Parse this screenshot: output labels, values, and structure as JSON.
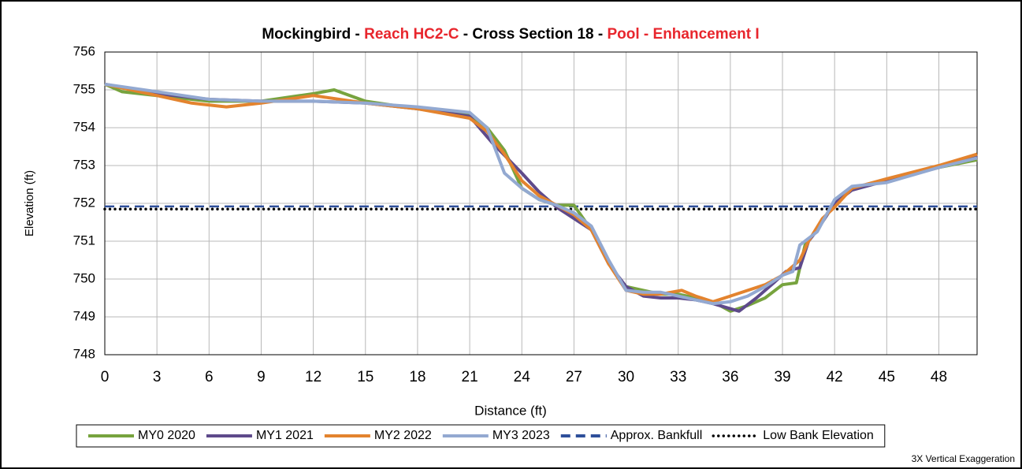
{
  "chart_data": {
    "type": "line",
    "title": [
      "Mockingbird - ",
      "Reach HC2-C",
      " - Cross Section 18 - ",
      "Pool - Enhancement I"
    ],
    "title_colors": [
      "#000000",
      "#e8262d",
      "#000000",
      "#e8262d"
    ],
    "xlabel": "Distance (ft)",
    "ylabel": "Elevation (ft)",
    "note": "3X Vertical Exaggeration",
    "xlim": [
      0,
      50.2
    ],
    "ylim": [
      748,
      756
    ],
    "xticks": [
      0,
      3,
      6,
      9,
      12,
      15,
      18,
      21,
      24,
      27,
      30,
      33,
      36,
      39,
      42,
      45,
      48
    ],
    "yticks": [
      748,
      749,
      750,
      751,
      752,
      753,
      754,
      755,
      756
    ],
    "grid": true,
    "legend": "bottom",
    "series": [
      {
        "name": "MY0 2020",
        "color": "#77a33e",
        "x": [
          0,
          1,
          3,
          6,
          9,
          12,
          13.2,
          15,
          18,
          21,
          22,
          23,
          24,
          25,
          26,
          27,
          28.3,
          29.3,
          30,
          31,
          32,
          33,
          34,
          35,
          36,
          37,
          38,
          39,
          39.8,
          40.3,
          41,
          42,
          43,
          45,
          48,
          50.2
        ],
        "values": [
          755.15,
          754.95,
          754.85,
          754.7,
          754.7,
          754.9,
          755.0,
          754.7,
          754.5,
          754.35,
          754.0,
          753.4,
          752.4,
          752.1,
          751.95,
          751.95,
          751.1,
          750.2,
          749.8,
          749.7,
          749.6,
          749.6,
          749.5,
          749.4,
          749.15,
          749.3,
          749.5,
          749.85,
          749.9,
          750.9,
          751.3,
          752.0,
          752.4,
          752.6,
          752.95,
          753.15
        ]
      },
      {
        "name": "MY1 2021",
        "color": "#5e4a8b",
        "x": [
          0,
          3,
          6,
          9,
          12,
          15,
          18,
          21,
          22.3,
          24,
          25,
          26,
          27,
          28,
          29,
          30,
          31,
          32,
          33,
          34,
          35,
          36.5,
          37.5,
          38.5,
          39.2,
          40,
          40.5,
          41,
          42,
          43,
          45,
          48,
          50.2
        ],
        "values": [
          755.15,
          754.9,
          754.75,
          754.7,
          754.7,
          754.65,
          754.5,
          754.3,
          753.6,
          752.8,
          752.3,
          751.9,
          751.6,
          751.3,
          750.4,
          749.8,
          749.55,
          749.5,
          749.5,
          749.45,
          749.35,
          749.15,
          749.5,
          749.9,
          750.2,
          750.3,
          751.0,
          751.3,
          752.0,
          752.35,
          752.6,
          752.95,
          753.25
        ]
      },
      {
        "name": "MY2 2022",
        "color": "#e3832e",
        "x": [
          0,
          3,
          5,
          7,
          9,
          12,
          15,
          18,
          21,
          22,
          23,
          24,
          25,
          26,
          27,
          28,
          29,
          30,
          31,
          32,
          33.2,
          34,
          35,
          36,
          37,
          38,
          39,
          40,
          40.5,
          41.3,
          42,
          43,
          45,
          48,
          50.2
        ],
        "values": [
          755.15,
          754.85,
          754.65,
          754.55,
          754.65,
          754.85,
          754.65,
          754.5,
          754.25,
          753.9,
          753.3,
          752.6,
          752.2,
          751.95,
          751.7,
          751.3,
          750.4,
          749.7,
          749.6,
          749.6,
          749.7,
          749.55,
          749.4,
          749.55,
          749.7,
          749.85,
          750.1,
          750.5,
          751.0,
          751.6,
          751.9,
          752.4,
          752.65,
          753.0,
          753.3
        ]
      },
      {
        "name": "MY3 2023",
        "color": "#93a9d1",
        "x": [
          0,
          3,
          6,
          9,
          12,
          15,
          18,
          21,
          22,
          23,
          24,
          25,
          26,
          27,
          28,
          29,
          30,
          31,
          32,
          33,
          34,
          35,
          36,
          37,
          38,
          39,
          39.6,
          40,
          41,
          42,
          43,
          45,
          48,
          50.2
        ],
        "values": [
          755.15,
          754.95,
          754.75,
          754.7,
          754.7,
          754.65,
          754.55,
          754.4,
          754.0,
          752.8,
          752.4,
          752.1,
          751.95,
          751.75,
          751.4,
          750.5,
          749.7,
          749.65,
          749.65,
          749.55,
          749.45,
          749.35,
          749.4,
          749.55,
          749.8,
          750.1,
          750.2,
          750.9,
          751.25,
          752.1,
          752.45,
          752.55,
          752.95,
          753.2
        ]
      }
    ],
    "reference_lines": [
      {
        "name": "Approx. Bankfull",
        "value": 751.92,
        "color": "#2e4f9a",
        "style": "dashed"
      },
      {
        "name": "Low Bank Elevation",
        "value": 751.85,
        "color": "#000000",
        "style": "dotted"
      }
    ]
  }
}
